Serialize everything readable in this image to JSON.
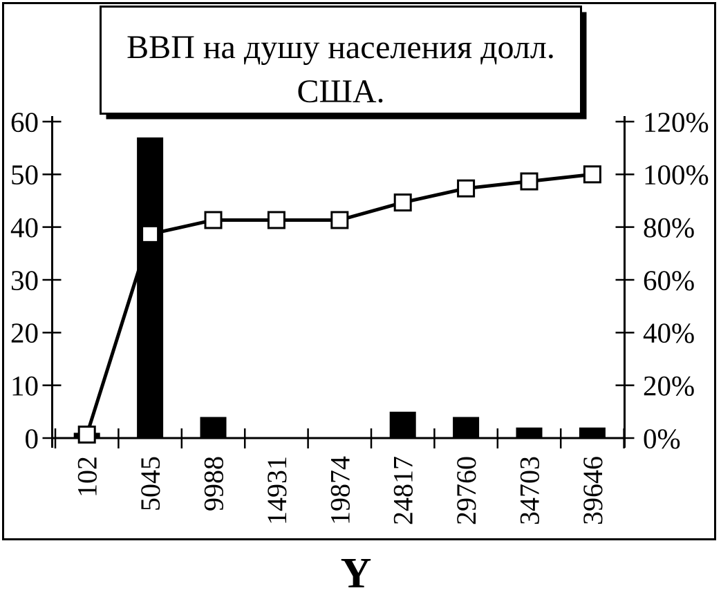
{
  "page": {
    "background": "#ffffff"
  },
  "chart_data": {
    "type": "bar",
    "subtype": "pareto-combo-bar-line",
    "title": "ВВП на душу населения долл. США.",
    "title_lines": [
      "ВВП на душу населения долл.",
      "США."
    ],
    "xlabel": "Y",
    "categories": [
      "102",
      "5045",
      "9988",
      "14931",
      "19874",
      "24817",
      "29760",
      "34703",
      "39646"
    ],
    "series": [
      {
        "name": "frequency-bars",
        "type": "bar",
        "axis": "left",
        "values": [
          1,
          57,
          4,
          0,
          0,
          5,
          4,
          2,
          2
        ]
      },
      {
        "name": "cumulative-percent-line",
        "type": "line",
        "axis": "right",
        "values": [
          1.33,
          77.33,
          82.67,
          82.67,
          82.67,
          89.33,
          94.67,
          97.33,
          100
        ]
      }
    ],
    "left_axis": {
      "min": 0,
      "max": 60,
      "step": 10,
      "tick_labels": [
        "0",
        "10",
        "20",
        "30",
        "40",
        "50",
        "60"
      ]
    },
    "right_axis": {
      "min": 0,
      "max": 120,
      "step": 20,
      "unit": "%",
      "tick_labels": [
        "0%",
        "20%",
        "40%",
        "60%",
        "80%",
        "100%",
        "120%"
      ]
    },
    "grid": false,
    "x_labels_rotation_degrees": -90,
    "colors": {
      "bar": "#000000",
      "line": "#000000",
      "marker_fill": "#ffffff",
      "marker_stroke": "#000000",
      "axis": "#000000",
      "frame": "#000000",
      "title_box_fill": "#ffffff",
      "title_box_shadow": "#000000",
      "background": "#ffffff"
    }
  }
}
